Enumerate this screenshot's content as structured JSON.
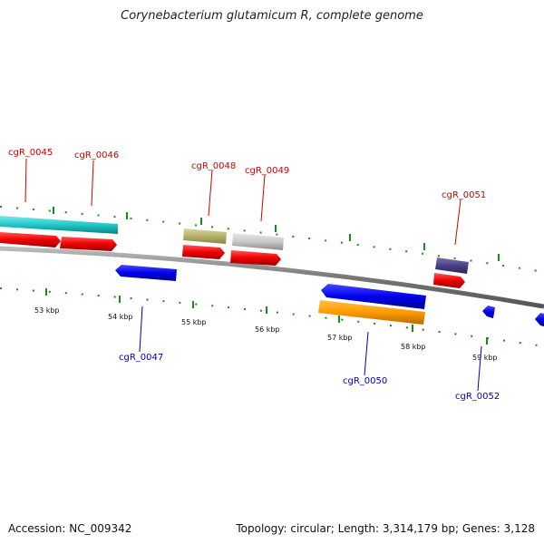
{
  "title": "Corynebacterium glutamicum R, complete genome",
  "accession": "Accession: NC_009342",
  "summary": "Topology: circular; Length: 3,314,179 bp; Genes: 3,128",
  "scale_labels": [
    "53 kbp",
    "54 kbp",
    "55 kbp",
    "56 kbp",
    "57 kbp",
    "58 kbp",
    "59 kbp"
  ],
  "labels_top": [
    "cgR_0045",
    "cgR_0046",
    "cgR_0048",
    "cgR_0049",
    "cgR_0051"
  ],
  "labels_bottom": [
    "cgR_0047",
    "cgR_0050",
    "cgR_0052"
  ],
  "colors": {
    "gene_red": "#ee0000",
    "gene_blue": "#0000ee",
    "cyan_feature": "#1fc8c8",
    "olive_feature": "#b5b36a",
    "gray_feature": "#c8c8c8",
    "purple_feature": "#4a4285",
    "orange_feature": "#ff9a00",
    "backbone": "#888888",
    "scale_ticks": "#1a8a1a",
    "label_top": "#cc0000",
    "label_bottom": "#0000b0"
  }
}
